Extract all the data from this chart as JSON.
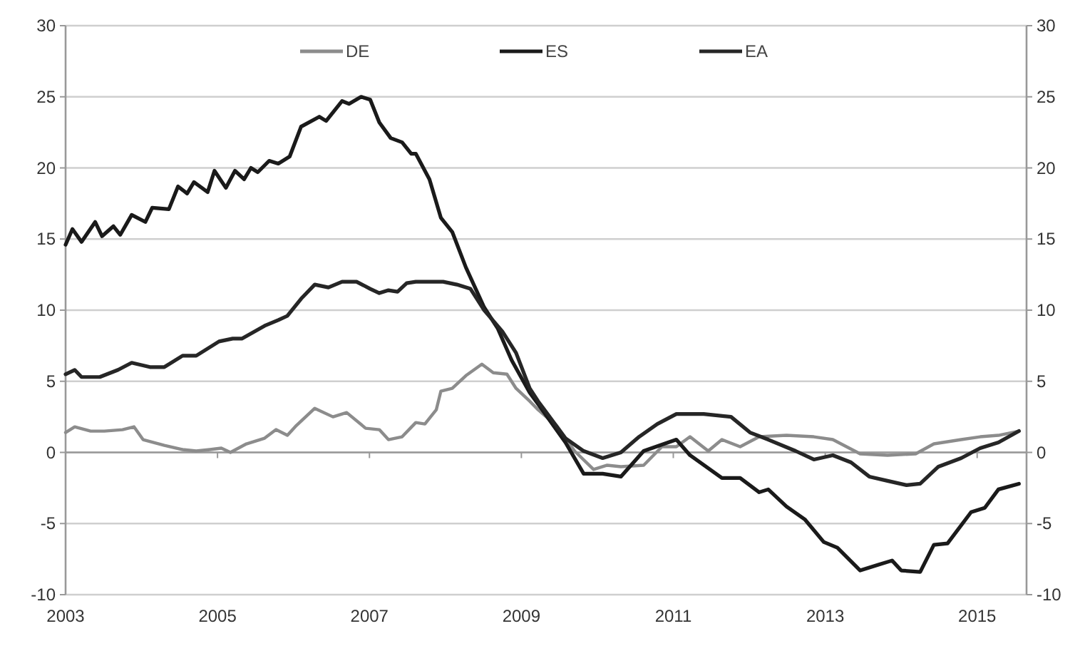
{
  "chart_data": {
    "type": "line",
    "xlim": [
      2003,
      2015.65
    ],
    "xticks": [
      2003,
      2005,
      2007,
      2009,
      2011,
      2013,
      2015
    ],
    "ylim": [
      -10,
      30
    ],
    "yticks": [
      -10,
      -5,
      0,
      5,
      10,
      15,
      20,
      25,
      30
    ],
    "y2lim": [
      -10,
      30
    ],
    "y2ticks": [
      -10,
      -5,
      0,
      5,
      10,
      15,
      20,
      25,
      30
    ],
    "grid": "y",
    "legend": "top",
    "line_style": "solid",
    "series": [
      {
        "name": "DE",
        "color": "#8c8c8c",
        "x": [
          2003.0,
          2003.12,
          2003.33,
          2003.51,
          2003.75,
          2003.9,
          2004.02,
          2004.3,
          2004.54,
          2004.72,
          2004.9,
          2005.05,
          2005.17,
          2005.38,
          2005.62,
          2005.77,
          2005.92,
          2006.04,
          2006.28,
          2006.52,
          2006.7,
          2006.95,
          2007.13,
          2007.25,
          2007.43,
          2007.61,
          2007.73,
          2007.88,
          2007.94,
          2008.09,
          2008.27,
          2008.48,
          2008.63,
          2008.81,
          2008.93,
          2009.11,
          2009.22,
          2009.46,
          2009.7,
          2009.95,
          2010.13,
          2010.31,
          2010.61,
          2010.85,
          2011.04,
          2011.22,
          2011.46,
          2011.64,
          2011.88,
          2012.13,
          2012.49,
          2012.85,
          2013.1,
          2013.46,
          2013.82,
          2014.19,
          2014.43,
          2014.79,
          2015.04,
          2015.28,
          2015.55
        ],
        "values": [
          1.4,
          1.8,
          1.5,
          1.5,
          1.6,
          1.8,
          0.9,
          0.5,
          0.2,
          0.1,
          0.2,
          0.3,
          0.0,
          0.6,
          1.0,
          1.6,
          1.2,
          1.9,
          3.1,
          2.5,
          2.8,
          1.7,
          1.6,
          0.9,
          1.1,
          2.1,
          2.0,
          3.0,
          4.3,
          4.5,
          5.4,
          6.2,
          5.6,
          5.5,
          4.5,
          3.6,
          3.0,
          1.9,
          0.1,
          -1.2,
          -0.9,
          -1.0,
          -0.9,
          0.4,
          0.4,
          1.1,
          0.1,
          0.9,
          0.4,
          1.1,
          1.2,
          1.1,
          0.9,
          -0.1,
          -0.2,
          -0.1,
          0.6,
          0.9,
          1.1,
          1.2,
          1.5
        ]
      },
      {
        "name": "ES",
        "color": "#1a1a1a",
        "x": [
          2003.0,
          2003.09,
          2003.21,
          2003.39,
          2003.48,
          2003.63,
          2003.72,
          2003.87,
          2004.05,
          2004.14,
          2004.36,
          2004.48,
          2004.6,
          2004.69,
          2004.87,
          2004.96,
          2005.11,
          2005.23,
          2005.35,
          2005.44,
          2005.53,
          2005.68,
          2005.8,
          2005.95,
          2006.1,
          2006.34,
          2006.43,
          2006.64,
          2006.73,
          2006.89,
          2007.01,
          2007.13,
          2007.28,
          2007.43,
          2007.55,
          2007.61,
          2007.79,
          2007.94,
          2008.09,
          2008.27,
          2008.51,
          2008.69,
          2008.87,
          2009.11,
          2009.22,
          2009.58,
          2009.82,
          2010.07,
          2010.31,
          2010.61,
          2011.04,
          2011.22,
          2011.64,
          2011.88,
          2012.13,
          2012.25,
          2012.49,
          2012.73,
          2012.98,
          2013.16,
          2013.46,
          2013.7,
          2013.88,
          2014.0,
          2014.25,
          2014.43,
          2014.61,
          2014.92,
          2015.1,
          2015.28,
          2015.55
        ],
        "values": [
          14.6,
          15.7,
          14.8,
          16.2,
          15.2,
          15.9,
          15.3,
          16.7,
          16.2,
          17.2,
          17.1,
          18.7,
          18.2,
          19.0,
          18.3,
          19.8,
          18.6,
          19.8,
          19.2,
          20.0,
          19.7,
          20.5,
          20.3,
          20.8,
          22.9,
          23.6,
          23.3,
          24.7,
          24.5,
          25.0,
          24.8,
          23.2,
          22.1,
          21.8,
          21.0,
          21.0,
          19.2,
          16.5,
          15.5,
          13.0,
          10.2,
          8.7,
          6.5,
          4.2,
          3.4,
          0.7,
          -1.5,
          -1.5,
          -1.7,
          0.1,
          0.9,
          -0.2,
          -1.8,
          -1.8,
          -2.8,
          -2.6,
          -3.8,
          -4.7,
          -6.3,
          -6.7,
          -8.3,
          -7.9,
          -7.6,
          -8.3,
          -8.4,
          -6.5,
          -6.4,
          -4.2,
          -3.9,
          -2.6,
          -2.2
        ]
      },
      {
        "name": "EA",
        "color": "#262626",
        "x": [
          2003.0,
          2003.12,
          2003.21,
          2003.45,
          2003.69,
          2003.87,
          2004.11,
          2004.3,
          2004.54,
          2004.72,
          2005.02,
          2005.2,
          2005.32,
          2005.62,
          2005.8,
          2005.92,
          2006.1,
          2006.28,
          2006.46,
          2006.64,
          2006.83,
          2007.01,
          2007.13,
          2007.25,
          2007.37,
          2007.49,
          2007.61,
          2007.79,
          2007.97,
          2008.15,
          2008.33,
          2008.51,
          2008.75,
          2008.93,
          2009.11,
          2009.22,
          2009.58,
          2009.82,
          2010.07,
          2010.31,
          2010.55,
          2010.79,
          2011.04,
          2011.4,
          2011.76,
          2012.01,
          2012.25,
          2012.61,
          2012.85,
          2013.1,
          2013.34,
          2013.58,
          2013.82,
          2014.07,
          2014.25,
          2014.49,
          2014.79,
          2015.04,
          2015.28,
          2015.55
        ],
        "values": [
          5.5,
          5.8,
          5.3,
          5.3,
          5.8,
          6.3,
          6.0,
          6.0,
          6.8,
          6.8,
          7.8,
          8.0,
          8.0,
          8.9,
          9.3,
          9.6,
          10.8,
          11.8,
          11.6,
          12.0,
          12.0,
          11.5,
          11.2,
          11.4,
          11.3,
          11.9,
          12.0,
          12.0,
          12.0,
          11.8,
          11.5,
          10.0,
          8.5,
          7.0,
          4.5,
          3.6,
          1.0,
          0.1,
          -0.4,
          0.0,
          1.1,
          2.0,
          2.7,
          2.7,
          2.5,
          1.4,
          0.9,
          0.1,
          -0.5,
          -0.2,
          -0.7,
          -1.7,
          -2.0,
          -2.3,
          -2.2,
          -1.0,
          -0.4,
          0.3,
          0.7,
          1.5
        ]
      }
    ]
  }
}
